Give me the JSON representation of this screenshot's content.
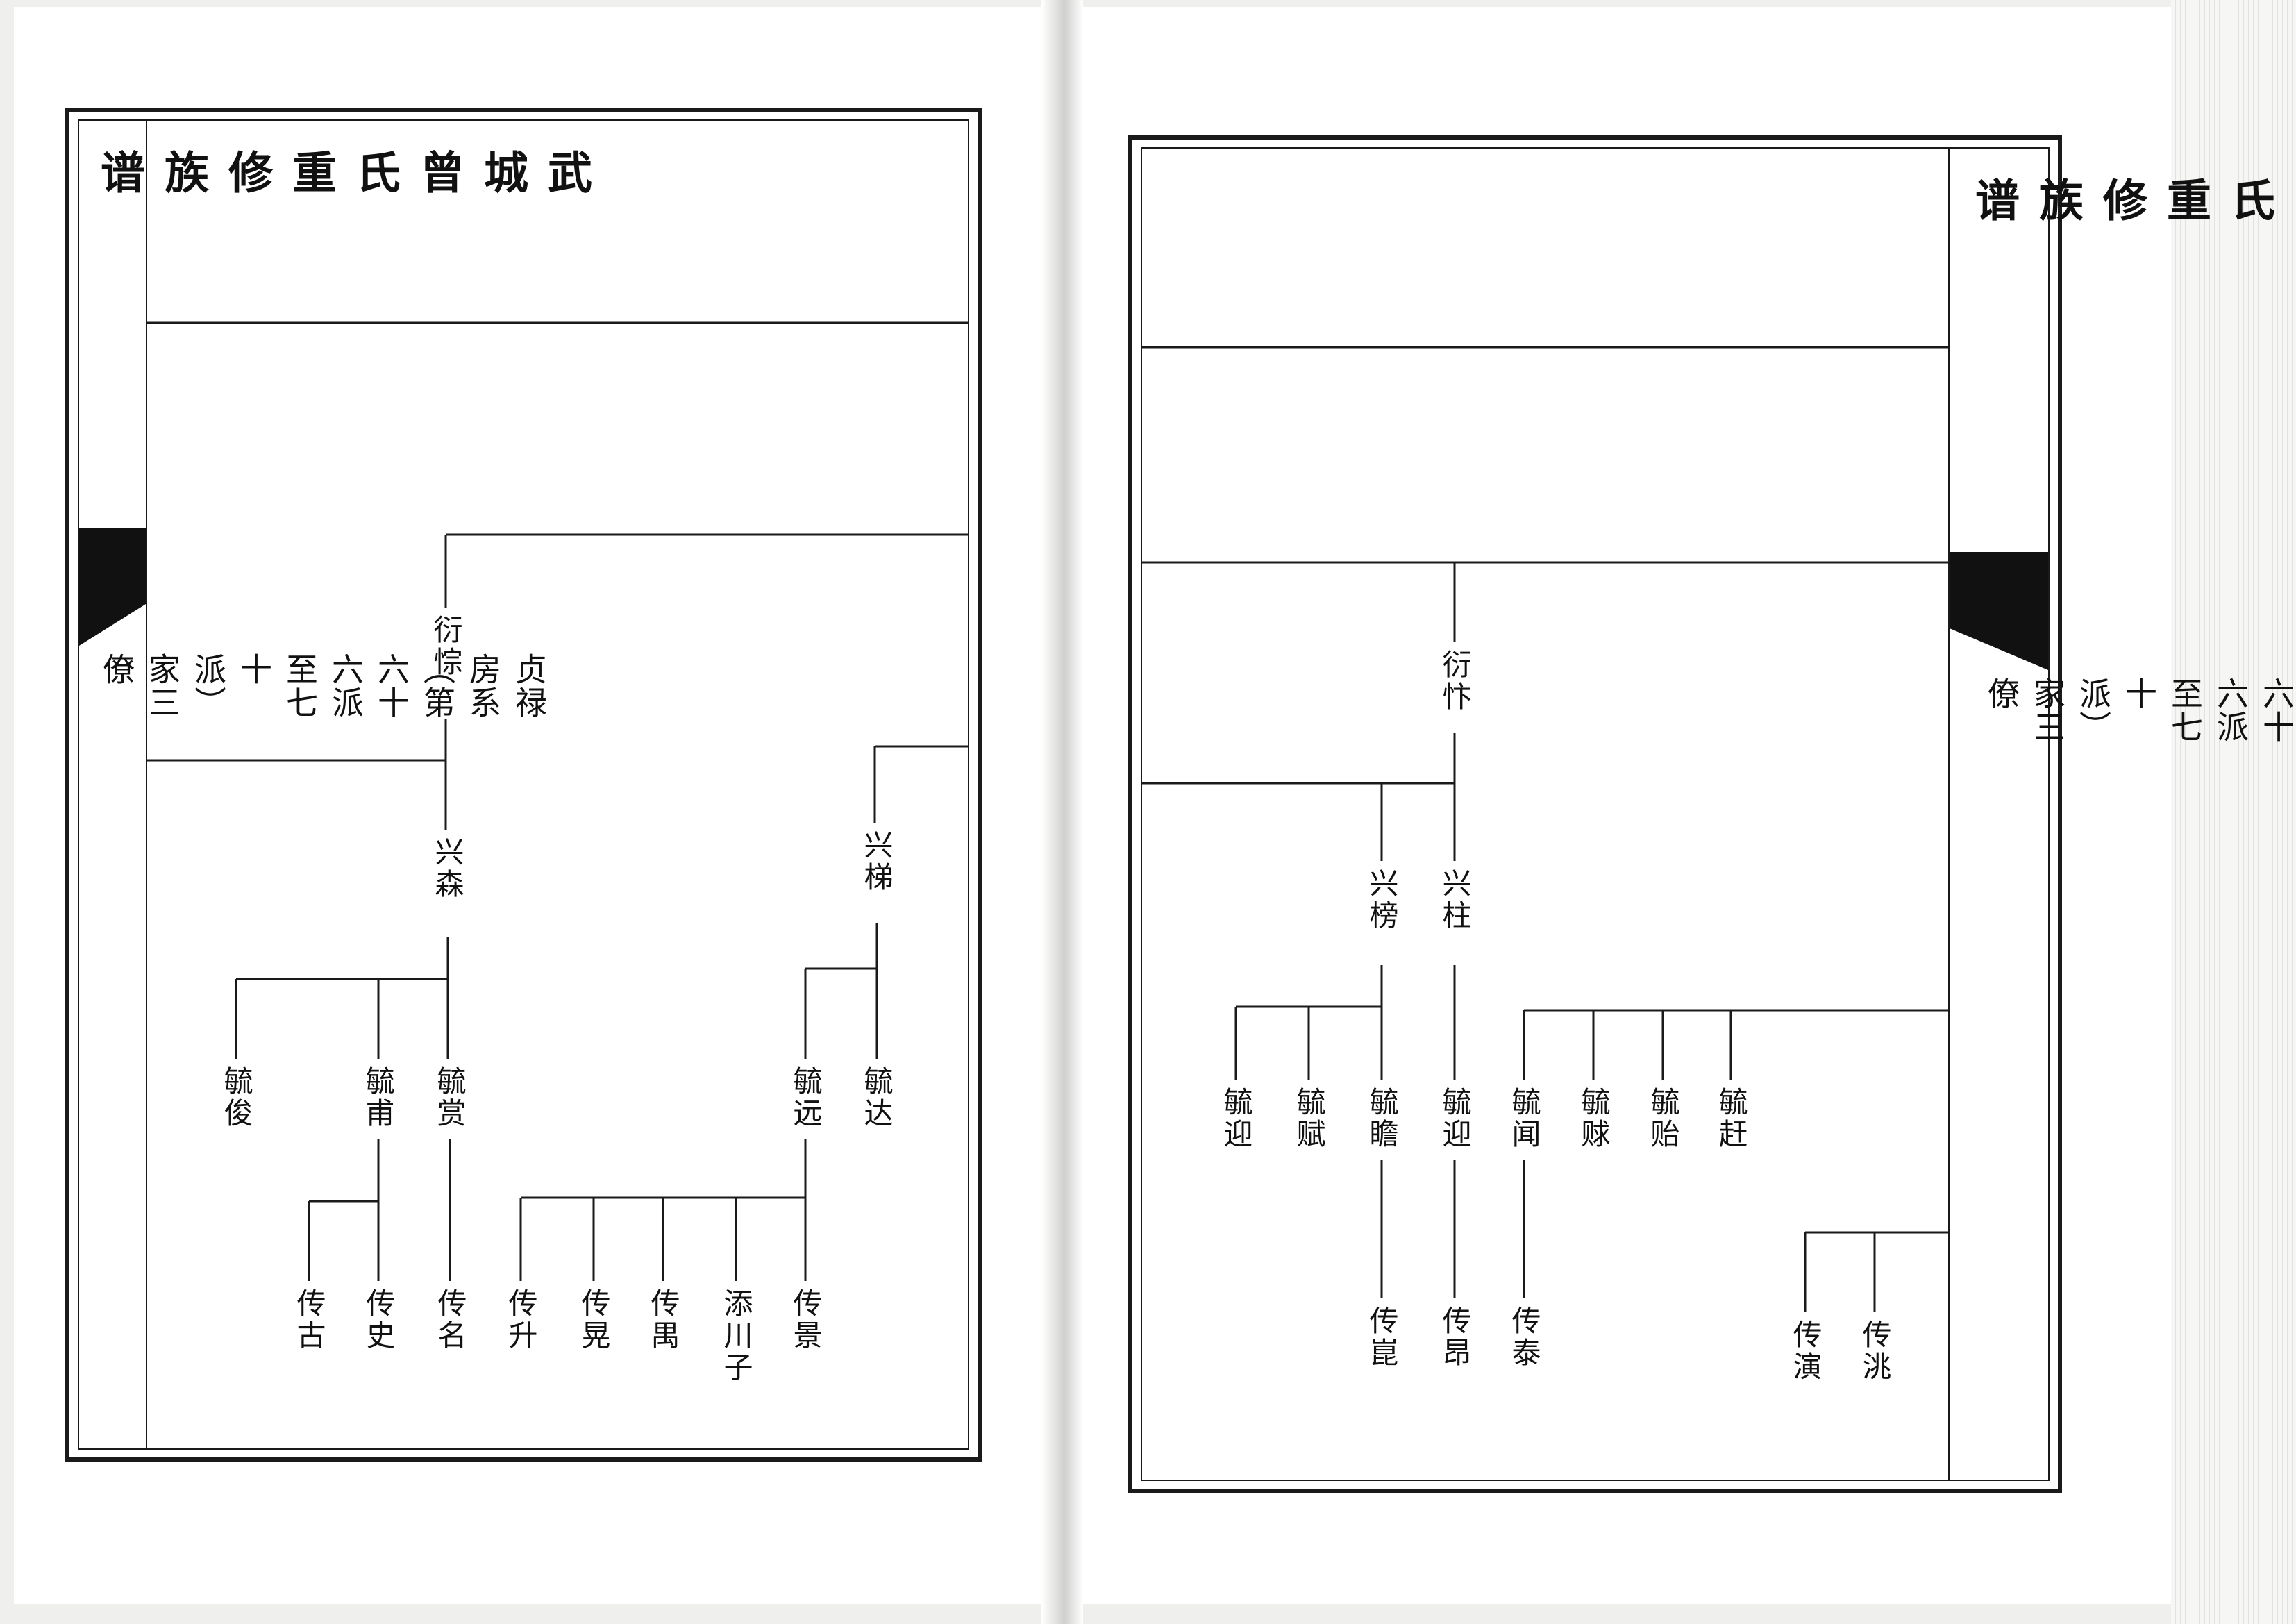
{
  "book_title": "武城曾氏重修族谱",
  "section": "贞禄房系（第六十六派至七十派）家三僚",
  "left_page": {
    "gen66": "衍悰",
    "gen67": [
      "兴森",
      "兴梯"
    ],
    "gen68": [
      "毓俊",
      "毓甫",
      "毓赏",
      "毓远",
      "毓达"
    ],
    "gen69": [
      "传古",
      "传史",
      "传名",
      "传升",
      "传晃",
      "传禺",
      "添川子",
      "传景"
    ]
  },
  "right_page": {
    "gen66": "衍忭",
    "gen67": [
      "兴榜",
      "兴柱"
    ],
    "gen68": [
      "毓迎",
      "毓赋",
      "毓瞻",
      "毓迎",
      "毓闻",
      "毓赇",
      "毓贻",
      "毓赶"
    ],
    "gen69": [
      "传崑",
      "传昂",
      "传泰",
      "传演",
      "传洮"
    ]
  }
}
